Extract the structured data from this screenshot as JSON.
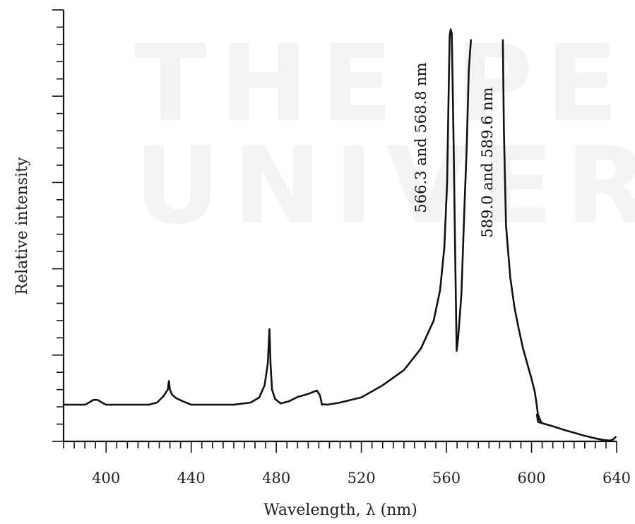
{
  "chart_data": {
    "type": "line",
    "title": "",
    "xlabel": "Wavelength, λ (nm)",
    "ylabel": "Relative intensity",
    "xlim": [
      380,
      640
    ],
    "ylim": [
      0,
      10
    ],
    "x_ticks": [
      400,
      440,
      480,
      520,
      560,
      600,
      640
    ],
    "x_tick_labels": [
      "400",
      "440",
      "480",
      "520",
      "560",
      "600",
      "640"
    ],
    "grid": false,
    "legend": "none",
    "annotations": [
      {
        "text": "566.3 and 568.8 nm",
        "x": 560,
        "y": 5.5
      },
      {
        "text": "589.0 and 589.6 nm",
        "x": 580,
        "y": 5.5
      }
    ],
    "series": [
      {
        "x": [
          380,
          390,
          392,
          394,
          396,
          398,
          400,
          420,
          424,
          427,
          429,
          429.5,
          430,
          431,
          433,
          436,
          440,
          460,
          468,
          472,
          474.5,
          476,
          476.8,
          477.3,
          478,
          479.5,
          482,
          486,
          490,
          495,
          499,
          500.5,
          501.5,
          502.5,
          504,
          510,
          520,
          530,
          540,
          548,
          554,
          557,
          559,
          560.3,
          561,
          561.5,
          562,
          562.5,
          563,
          563.5,
          564,
          564.8,
          565.5,
          567,
          568.5,
          569.5,
          570.5,
          571.5
        ],
        "y": [
          0.85,
          0.85,
          0.9,
          0.96,
          0.96,
          0.9,
          0.85,
          0.85,
          0.9,
          1.05,
          1.2,
          1.4,
          1.2,
          1.08,
          1.0,
          0.93,
          0.85,
          0.85,
          0.9,
          1.02,
          1.3,
          1.8,
          2.6,
          1.8,
          1.2,
          0.98,
          0.88,
          0.93,
          1.03,
          1.1,
          1.18,
          1.07,
          0.85,
          0.86,
          0.85,
          0.9,
          1.02,
          1.3,
          1.65,
          2.15,
          2.8,
          3.5,
          4.5,
          6.0,
          8.0,
          9.4,
          9.55,
          9.45,
          8.0,
          6.5,
          4.7,
          2.1,
          2.4,
          3.4,
          5.5,
          6.8,
          8.6,
          9.3
        ]
      },
      {
        "x": [
          586.5,
          587,
          588,
          590,
          592,
          594,
          596,
          598,
          600,
          601.5,
          602.5,
          603,
          604.5,
          603.5,
          602.5,
          603,
          605,
          610,
          615,
          620,
          625,
          630,
          634,
          637,
          638.5,
          639.5
        ],
        "y": [
          9.3,
          7.2,
          5.0,
          3.8,
          3.1,
          2.6,
          2.15,
          1.8,
          1.45,
          1.15,
          0.82,
          0.62,
          0.45,
          0.52,
          0.62,
          0.45,
          0.42,
          0.35,
          0.27,
          0.2,
          0.13,
          0.07,
          0.03,
          0.02,
          0.05,
          0.1
        ]
      }
    ]
  }
}
